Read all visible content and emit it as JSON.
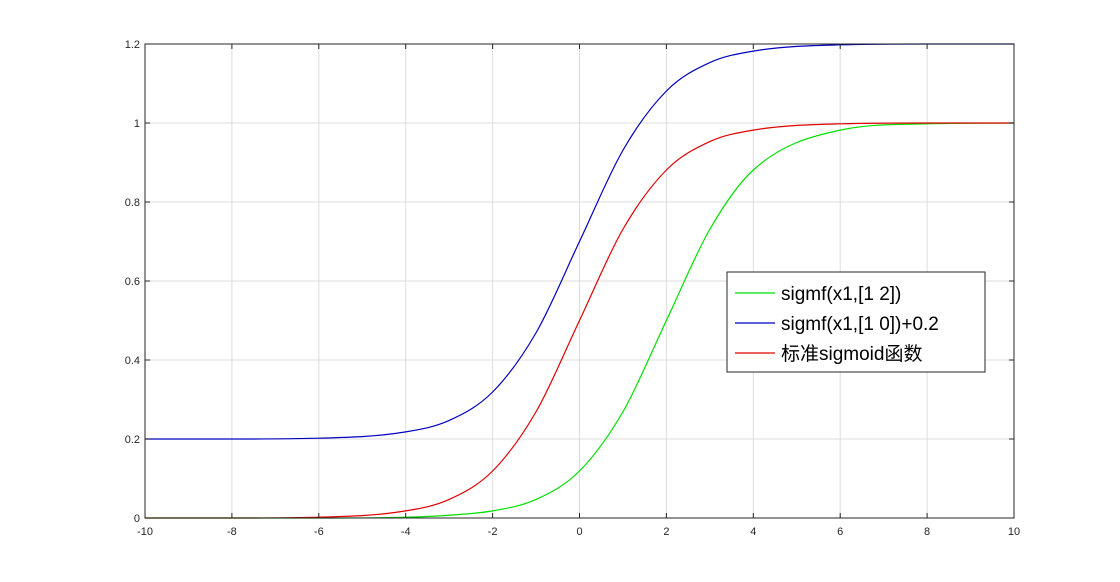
{
  "chart_data": {
    "type": "line",
    "title": "",
    "xlabel": "",
    "ylabel": "",
    "xlim": [
      -10,
      10
    ],
    "ylim": [
      0,
      1.2
    ],
    "grid": true,
    "x_ticks": [
      -10,
      -8,
      -6,
      -4,
      -2,
      0,
      2,
      4,
      6,
      8,
      10
    ],
    "y_ticks": [
      0,
      0.2,
      0.4,
      0.6,
      0.8,
      1,
      1.2
    ],
    "x_tick_labels": [
      "-10",
      "-8",
      "-6",
      "-4",
      "-2",
      "0",
      "2",
      "4",
      "6",
      "8",
      "10"
    ],
    "y_tick_labels": [
      "0",
      "0.2",
      "0.4",
      "0.6",
      "0.8",
      "1",
      "1.2"
    ],
    "legend_position": "center-right",
    "x": [
      -10,
      -8,
      -6,
      -4,
      -3,
      -2,
      -1,
      0,
      1,
      2,
      3,
      4,
      6,
      8,
      10
    ],
    "series": [
      {
        "name": "sigmf(x1,[1 2])",
        "color": "#00e000",
        "values": [
          0.0,
          0.0,
          0.0,
          0.002,
          0.007,
          0.018,
          0.047,
          0.119,
          0.269,
          0.5,
          0.731,
          0.881,
          0.982,
          0.998,
          1.0
        ]
      },
      {
        "name": "sigmf(x1,[1 0])+0.2",
        "color": "#0000c0",
        "values": [
          0.2,
          0.2,
          0.202,
          0.218,
          0.247,
          0.319,
          0.469,
          0.7,
          0.931,
          1.081,
          1.153,
          1.182,
          1.198,
          1.2,
          1.2
        ]
      },
      {
        "name": "标准sigmoid函数",
        "color": "#e00000",
        "values": [
          0.0,
          0.0,
          0.002,
          0.018,
          0.047,
          0.119,
          0.269,
          0.5,
          0.731,
          0.881,
          0.953,
          0.982,
          0.998,
          1.0,
          1.0
        ]
      }
    ]
  }
}
